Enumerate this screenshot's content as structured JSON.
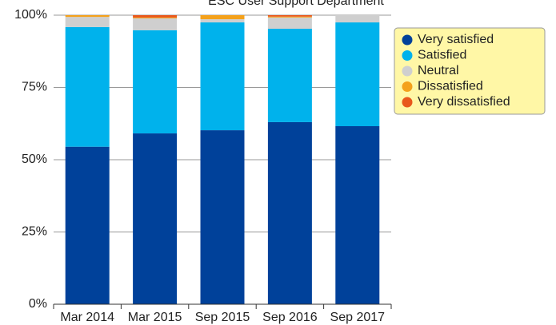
{
  "chart_data": {
    "type": "stacked_bar",
    "title": "ESC User Support Department",
    "categories": [
      "Mar 2014",
      "Mar 2015",
      "Sep 2015",
      "Sep 2016",
      "Sep 2017"
    ],
    "series": [
      {
        "name": "Very satisfied",
        "color": "#00419a",
        "values": [
          54.5,
          59.1,
          60.2,
          63.0,
          61.6
        ]
      },
      {
        "name": "Satisfied",
        "color": "#00b2ec",
        "values": [
          41.4,
          35.7,
          37.3,
          32.3,
          35.9
        ]
      },
      {
        "name": "Neutral",
        "color": "#cfcfcf",
        "values": [
          3.5,
          4.1,
          1.1,
          3.9,
          2.5
        ]
      },
      {
        "name": "Dissatisfied",
        "color": "#f4a11b",
        "values": [
          0.6,
          0.3,
          1.4,
          0.3,
          0
        ]
      },
      {
        "name": "Very dissatisfied",
        "color": "#e8581c",
        "values": [
          0,
          0.8,
          0,
          0.5,
          0
        ]
      }
    ],
    "ylim": [
      0,
      100
    ],
    "yticks": [
      {
        "value": 0,
        "label": "0%"
      },
      {
        "value": 25,
        "label": "25%"
      },
      {
        "value": 50,
        "label": "50%"
      },
      {
        "value": 75,
        "label": "75%"
      },
      {
        "value": 100,
        "label": "100%"
      }
    ],
    "grid": true,
    "legend": "right"
  }
}
